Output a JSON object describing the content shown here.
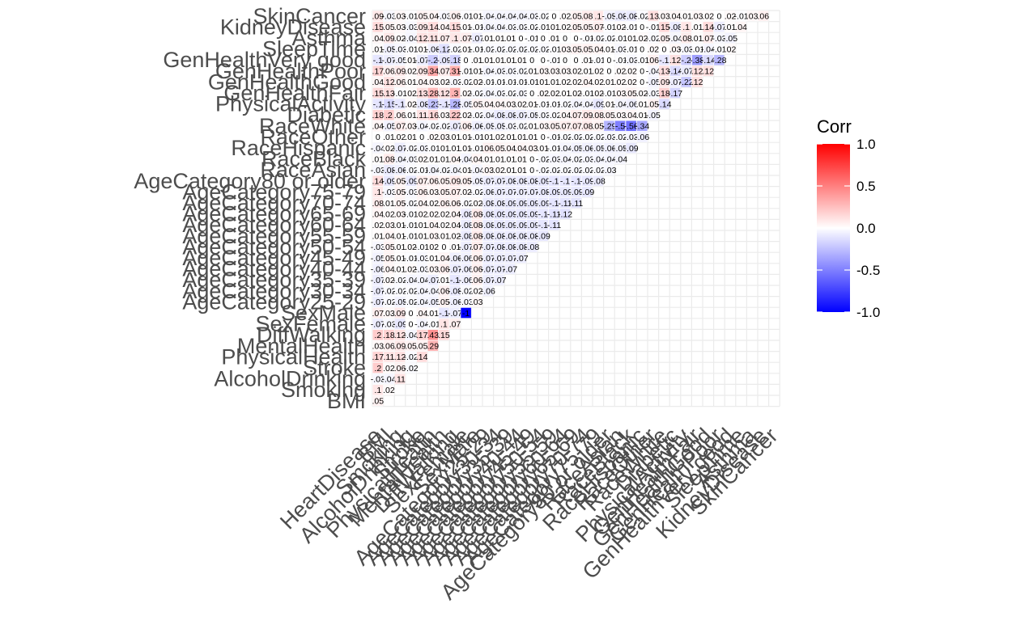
{
  "chart_data": {
    "type": "heatmap",
    "subtype": "lower-triangle correlation matrix",
    "columns": [
      "HeartDisease",
      "BMI",
      "Smoking",
      "AlcoholDrinking",
      "Stroke",
      "PhysicalHealth",
      "MentalHealth",
      "DiffWalking",
      "SexFemale",
      "SexMale",
      "AgeCategory25-29",
      "AgeCategory30-34",
      "AgeCategory35-39",
      "AgeCategory40-44",
      "AgeCategory45-49",
      "AgeCategory50-54",
      "AgeCategory55-59",
      "AgeCategory60-64",
      "AgeCategory65-69",
      "AgeCategory70-74",
      "AgeCategory75-79",
      "AgeCategory80 or older",
      "RaceAsian",
      "RaceBlack",
      "RaceHispanic",
      "RaceOther",
      "RaceWhite",
      "Diabetic",
      "PhysicalActivity",
      "GenHealthFair",
      "GenHealthGood",
      "GenHealthPoor",
      "GenHealthVery good",
      "SleepTime",
      "Asthma",
      "KidneyDisease",
      "SkinCancer"
    ],
    "rows": [
      "BMI",
      "Smoking",
      "AlcoholDrinking",
      "Stroke",
      "PhysicalHealth",
      "MentalHealth",
      "DiffWalking",
      "SexFemale",
      "SexMale",
      "AgeCategory25-29",
      "AgeCategory30-34",
      "AgeCategory35-39",
      "AgeCategory40-44",
      "AgeCategory45-49",
      "AgeCategory50-54",
      "AgeCategory55-59",
      "AgeCategory60-64",
      "AgeCategory65-69",
      "AgeCategory70-74",
      "AgeCategory75-79",
      "AgeCategory80 or older",
      "RaceAsian",
      "RaceBlack",
      "RaceHispanic",
      "RaceOther",
      "RaceWhite",
      "Diabetic",
      "PhysicalActivity",
      "GenHealthFair",
      "GenHealthGood",
      "GenHealthPoor",
      "GenHealthVery good",
      "SleepTime",
      "Asthma",
      "KidneyDisease",
      "SkinCancer"
    ],
    "values": [
      [
        0.05
      ],
      [
        0.1,
        0.02
      ],
      [
        -0.03,
        -0.04,
        0.11
      ],
      [
        0.2,
        0.02,
        0.06,
        -0.02
      ],
      [
        0.17,
        0.11,
        0.12,
        -0.02,
        0.14
      ],
      [
        0.03,
        0.06,
        0.09,
        0.05,
        0.05,
        0.29
      ],
      [
        0.2,
        0.18,
        0.12,
        -0.04,
        0.17,
        0.43,
        0.15
      ],
      [
        -0.07,
        -0.03,
        -0.09,
        0,
        -0.04,
        -0.01,
        0.1,
        0.07
      ],
      [
        0.07,
        0.03,
        0.09,
        0,
        0.04,
        0.01,
        -0.1,
        -0.07,
        -1
      ],
      [
        -0.07,
        -0.02,
        -0.05,
        -0.02,
        -0.04,
        -0.05,
        0.05,
        -0.06,
        -0.03,
        0.03
      ],
      [
        -0.07,
        -0.02,
        -0.02,
        -0.02,
        -0.04,
        -0.04,
        0.06,
        -0.08,
        -0.02,
        0.02,
        -0.06
      ],
      [
        -0.07,
        0.02,
        -0.02,
        -0.04,
        -0.04,
        -0.07,
        0.01,
        -0.1,
        -0.06,
        0.06,
        -0.07,
        -0.07
      ],
      [
        -0.06,
        0.04,
        0.01,
        0.02,
        -0.03,
        0.03,
        0.06,
        -0.07,
        -0.06,
        0.06,
        -0.07,
        -0.07,
        -0.07
      ],
      [
        -0.05,
        0.05,
        0.01,
        -0.01,
        -0.03,
        0.01,
        0.04,
        -0.06,
        -0.06,
        0.06,
        -0.07,
        -0.07,
        -0.07,
        -0.07
      ],
      [
        -0.03,
        0.05,
        0.01,
        0.02,
        -0.01,
        0.02,
        0,
        0.01,
        -0.07,
        0.07,
        -0.07,
        -0.08,
        -0.08,
        -0.08,
        -0.08
      ],
      [
        0.01,
        0.04,
        0.01,
        -0.01,
        0.01,
        0.03,
        0.01,
        0.02,
        -0.08,
        0.08,
        -0.08,
        -0.08,
        -0.08,
        -0.08,
        -0.08,
        -0.09
      ],
      [
        0.02,
        0.03,
        0.01,
        -0.01,
        0.01,
        0.04,
        0.02,
        0.04,
        -0.08,
        0.08,
        -0.08,
        -0.09,
        -0.09,
        -0.09,
        -0.09,
        -0.1,
        -0.11
      ],
      [
        0.04,
        0.02,
        0.03,
        -0.01,
        0.02,
        0.02,
        0.02,
        0.04,
        -0.08,
        0.08,
        -0.08,
        -0.09,
        -0.09,
        -0.09,
        -0.09,
        -0.1,
        -0.11,
        -0.12
      ],
      [
        0.08,
        0.01,
        0.05,
        -0.02,
        0.04,
        0.02,
        0.06,
        0.06,
        -0.02,
        0.02,
        -0.08,
        -0.08,
        -0.09,
        -0.09,
        -0.09,
        -0.09,
        -0.1,
        -0.11,
        -0.11
      ],
      [
        0.1,
        -0.03,
        0.05,
        -0.03,
        0.06,
        0.03,
        0.05,
        0.07,
        0.02,
        -0.02,
        -0.06,
        -0.07,
        -0.07,
        -0.07,
        -0.07,
        -0.08,
        -0.09,
        -0.09,
        -0.09,
        -0.09
      ],
      [
        0.14,
        -0.09,
        0.05,
        -0.09,
        0.07,
        0.06,
        0.05,
        0.09,
        0.05,
        -0.05,
        -0.07,
        -0.07,
        -0.08,
        -0.08,
        -0.08,
        -0.09,
        -0.1,
        -0.1,
        -0.1,
        -0.09,
        -0.08
      ],
      [
        -0.03,
        -0.08,
        -0.06,
        -0.02,
        -0.01,
        -0.04,
        -0.02,
        -0.04,
        0.01,
        -0.04,
        0.03,
        0.02,
        0.01,
        0.01,
        0,
        -0.02,
        -0.02,
        -0.02,
        -0.02,
        -0.02,
        -0.02,
        -0.03
      ],
      [
        0.01,
        0.08,
        -0.04,
        -0.03,
        0.02,
        0.01,
        0.01,
        0.04,
        -0.04,
        0.04,
        0.01,
        0.01,
        0.01,
        0.01,
        0,
        -0.02,
        -0.03,
        -0.04,
        -0.02,
        -0.03,
        -0.04,
        -0.04,
        -0.04
      ],
      [
        -0.04,
        0.02,
        -0.07,
        -0.02,
        -0.03,
        -0.01,
        0.01,
        0.01,
        0.01,
        -0.01,
        0.06,
        0.05,
        0.04,
        0.04,
        0.03,
        0.01,
        -0.01,
        -0.04,
        -0.05,
        -0.06,
        -0.05,
        -0.06,
        -0.05,
        -0.09
      ],
      [
        0,
        0.01,
        0.02,
        0.01,
        0,
        0.02,
        0.03,
        0.01,
        0.01,
        -0.01,
        0.01,
        0.02,
        0.01,
        0.01,
        0.01,
        0,
        -0.01,
        -0.02,
        -0.02,
        -0.02,
        -0.02,
        -0.03,
        -0.02,
        -0.03,
        -0.06
      ],
      [
        0.04,
        -0.05,
        0.07,
        0.03,
        -0.04,
        -0.02,
        -0.02,
        -0.07,
        0.06,
        -0.06,
        -0.05,
        -0.05,
        -0.03,
        -0.02,
        0.01,
        0.03,
        0.05,
        0.07,
        0.07,
        0.08,
        0.05,
        -0.29,
        -0.5,
        -0.56,
        -0.34
      ],
      [
        0.18,
        0.2,
        0.06,
        0.01,
        0.11,
        0.16,
        0.03,
        0.22,
        0.02,
        -0.02,
        -0.04,
        -0.08,
        -0.08,
        -0.07,
        -0.05,
        -0.03,
        -0.02,
        0.04,
        0.07,
        0.09,
        0.08,
        0.05,
        0.03,
        0.04,
        0.01,
        -0.05
      ],
      [
        -0.1,
        -0.15,
        -0.1,
        0.02,
        -0.08,
        -0.23,
        -0.1,
        -0.28,
        -0.05,
        0.05,
        0.04,
        0.04,
        0.03,
        0.02,
        0.01,
        -0.01,
        -0.01,
        -0.02,
        -0.04,
        -0.04,
        -0.09,
        0.01,
        -0.04,
        -0.06,
        0.01,
        0.05,
        -0.14
      ],
      [
        0.15,
        0.13,
        -0.01,
        0.02,
        0.13,
        0.28,
        0.12,
        0.3,
        0.02,
        -0.02,
        -0.04,
        -0.03,
        -0.02,
        -0.03,
        0,
        0.02,
        0.02,
        0.01,
        0.02,
        -0.01,
        0.02,
        -0.01,
        0.03,
        0.05,
        0.02,
        -0.03,
        0.18,
        -0.17
      ],
      [
        0.04,
        0.12,
        0.06,
        0.01,
        0.04,
        0.03,
        0.02,
        -0.03,
        -0.02,
        0.02,
        -0.01,
        -0.01,
        -0.01,
        -0.01,
        -0.01,
        0.01,
        0.01,
        0.02,
        0.02,
        0.04,
        0.02,
        0.01,
        0.02,
        0.02,
        0,
        -0.05,
        0.09,
        -0.07,
        -0.22,
        0.12
      ],
      [
        0.17,
        0.06,
        0.09,
        0.02,
        0.09,
        0.34,
        0.07,
        0.31,
        -0.01,
        0.01,
        -0.04,
        -0.03,
        -0.03,
        -0.02,
        0.01,
        0.03,
        0.03,
        0.03,
        0.02,
        0.01,
        0.02,
        0,
        0.02,
        0.02,
        0,
        -0.04,
        0.13,
        -0.14,
        -0.07,
        0.12,
        0.12
      ],
      [
        -0.1,
        -0.07,
        -0.05,
        0.01,
        -0.07,
        -0.2,
        -0.09,
        -0.18,
        0,
        0.01,
        0.01,
        0.01,
        0.01,
        0.01,
        0,
        0,
        -0.01,
        0,
        0,
        0.01,
        -0.01,
        0,
        -0.01,
        -0.03,
        -0.01,
        0.06,
        -0.1,
        0.12,
        -0.2,
        -0.38,
        -0.14,
        -0.28
      ],
      [
        0.01,
        -0.05,
        -0.03,
        -0.01,
        0.01,
        -0.06,
        -0.12,
        -0.02,
        0.01,
        -0.01,
        -0.02,
        -0.02,
        -0.02,
        -0.02,
        -0.02,
        -0.02,
        -0.01,
        0.03,
        0.05,
        0.05,
        0.04,
        0.01,
        -0.03,
        -0.01,
        0,
        0.02,
        0,
        0.03,
        -0.03,
        -0.01,
        -0.04,
        -0.01,
        0.02
      ],
      [
        0.04,
        0.09,
        0.02,
        -0.04,
        0.12,
        0.11,
        0.07,
        0.1,
        0.07,
        -0.07,
        0.01,
        0.01,
        0.01,
        0,
        -0.01,
        0,
        0.01,
        0,
        0,
        -0.01,
        -0.02,
        -0.02,
        -0.01,
        0.01,
        0.02,
        -0.02,
        0.05,
        -0.04,
        0.08,
        0.01,
        0.07,
        -0.03,
        -0.05
      ],
      [
        0.15,
        0.05,
        0.03,
        -0.03,
        0.09,
        0.14,
        0.04,
        0.15,
        0.01,
        -0.01,
        -0.04,
        -0.04,
        -0.03,
        -0.03,
        -0.02,
        -0.01,
        0.01,
        0.02,
        0.05,
        0.05,
        0.07,
        -0.01,
        0.02,
        -0.01,
        0,
        -0.01,
        0.15,
        -0.08,
        0.1,
        0.01,
        0.14,
        -0.07,
        0.01,
        0.04
      ],
      [
        0.09,
        -0.03,
        0.03,
        -0.01,
        0.05,
        0.04,
        -0.03,
        0.06,
        -0.01,
        0.01,
        -0.04,
        -0.04,
        -0.04,
        -0.04,
        -0.03,
        -0.02,
        0,
        0.02,
        0.05,
        0.08,
        0.1,
        -0.05,
        -0.08,
        -0.08,
        -0.02,
        0.13,
        0.03,
        0.04,
        0.01,
        0.03,
        0.02,
        0,
        0.02,
        -0.01,
        0.03,
        0.06
      ]
    ],
    "legend": {
      "title": "Corr",
      "ticks": [
        "1.0",
        "0.5",
        "0.0",
        "-0.5",
        "-1.0"
      ],
      "tick_values": [
        1,
        0.5,
        0,
        -0.5,
        -1
      ],
      "placement": "right"
    },
    "color_scale": {
      "low": "#0000ff",
      "mid": "#ffffff",
      "high": "#ff0000"
    },
    "grid": true
  }
}
